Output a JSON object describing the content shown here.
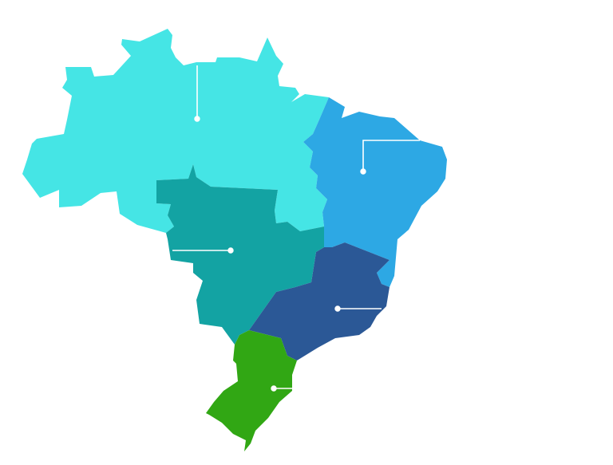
{
  "map": {
    "subject": "Brazil regions",
    "regions": [
      {
        "id": "north",
        "color": "#45E5E5"
      },
      {
        "id": "northeast",
        "color": "#2DA8E4"
      },
      {
        "id": "central-west",
        "color": "#13A3A3"
      },
      {
        "id": "southeast",
        "color": "#2B5896"
      },
      {
        "id": "south",
        "color": "#31A714"
      }
    ],
    "leader_color": "#FFFFFF"
  }
}
